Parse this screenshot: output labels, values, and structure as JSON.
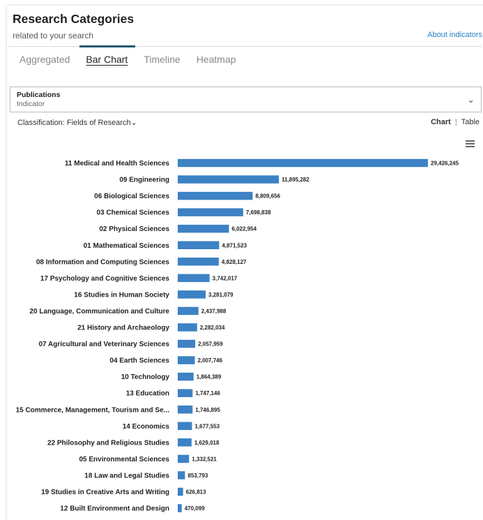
{
  "header": {
    "title": "Research Categories",
    "subtitle": "related to your search",
    "about_link": "About indicators"
  },
  "tabs": [
    {
      "label": "Aggregated",
      "active": false
    },
    {
      "label": "Bar Chart",
      "active": true
    },
    {
      "label": "Timeline",
      "active": false
    },
    {
      "label": "Heatmap",
      "active": false
    }
  ],
  "indicator": {
    "label": "Publications",
    "sublabel": "Indicator"
  },
  "classification": {
    "label": "Classification: Fields of Research"
  },
  "view_toggle": {
    "chart": "Chart",
    "separator": "|",
    "table": "Table"
  },
  "colors": {
    "bar": "#3d82c4",
    "link": "#2a7fc1",
    "tab_indicator": "#1c5a76"
  },
  "icons": [
    "menu-icon",
    "chevron-down-icon"
  ],
  "chart_data": {
    "type": "bar",
    "orientation": "horizontal",
    "categories": [
      "11 Medical and Health Sciences",
      "09 Engineering",
      "06 Biological Sciences",
      "03 Chemical Sciences",
      "02 Physical Sciences",
      "01 Mathematical Sciences",
      "08 Information and Computing Sciences",
      "17 Psychology and Cognitive Sciences",
      "16 Studies in Human Society",
      "20 Language, Communication and Culture",
      "21 History and Archaeology",
      "07 Agricultural and Veterinary Sciences",
      "04 Earth Sciences",
      "10 Technology",
      "13 Education",
      "15 Commerce, Management, Tourism and Se...",
      "14 Economics",
      "22 Philosophy and Religious Studies",
      "05 Environmental Sciences",
      "18 Law and Legal Studies",
      "19 Studies in Creative Arts and Writing",
      "12 Built Environment and Design"
    ],
    "values": [
      29426245,
      11895282,
      8809656,
      7698838,
      6022954,
      4871523,
      4828127,
      3742017,
      3281079,
      2437988,
      2282034,
      2057959,
      2007746,
      1864389,
      1747146,
      1746895,
      1677553,
      1629018,
      1332521,
      853793,
      626813,
      470099
    ],
    "value_labels": [
      "29,426,245",
      "11,895,282",
      "8,809,656",
      "7,698,838",
      "6,022,954",
      "4,871,523",
      "4,828,127",
      "3,742,017",
      "3,281,079",
      "2,437,988",
      "2,282,034",
      "2,057,959",
      "2,007,746",
      "1,864,389",
      "1,747,146",
      "1,746,895",
      "1,677,553",
      "1,629,018",
      "1,332,521",
      "853,793",
      "626,813",
      "470,099"
    ],
    "title": "",
    "xlabel": "",
    "ylabel": "",
    "grid": false,
    "legend": "none"
  }
}
